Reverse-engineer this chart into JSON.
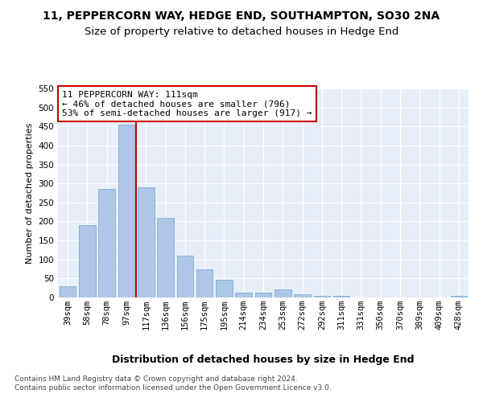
{
  "title1": "11, PEPPERCORN WAY, HEDGE END, SOUTHAMPTON, SO30 2NA",
  "title2": "Size of property relative to detached houses in Hedge End",
  "xlabel": "Distribution of detached houses by size in Hedge End",
  "ylabel": "Number of detached properties",
  "categories": [
    "39sqm",
    "58sqm",
    "78sqm",
    "97sqm",
    "117sqm",
    "136sqm",
    "156sqm",
    "175sqm",
    "195sqm",
    "214sqm",
    "234sqm",
    "253sqm",
    "272sqm",
    "292sqm",
    "311sqm",
    "331sqm",
    "350sqm",
    "370sqm",
    "389sqm",
    "409sqm",
    "428sqm"
  ],
  "values": [
    30,
    190,
    285,
    455,
    290,
    210,
    110,
    73,
    46,
    13,
    12,
    21,
    8,
    4,
    5,
    0,
    0,
    0,
    0,
    0,
    5
  ],
  "bar_color": "#aec6e8",
  "bar_edge_color": "#7bafd4",
  "vline_color": "#cc0000",
  "annotation_text": "11 PEPPERCORN WAY: 111sqm\n← 46% of detached houses are smaller (796)\n53% of semi-detached houses are larger (917) →",
  "annotation_box_color": "white",
  "annotation_box_edge": "#cc0000",
  "ylim": [
    0,
    550
  ],
  "yticks": [
    0,
    50,
    100,
    150,
    200,
    250,
    300,
    350,
    400,
    450,
    500,
    550
  ],
  "bg_color": "#e8eef8",
  "grid_color": "white",
  "footer": "Contains HM Land Registry data © Crown copyright and database right 2024.\nContains public sector information licensed under the Open Government Licence v3.0.",
  "title1_fontsize": 10,
  "title2_fontsize": 9.5,
  "xlabel_fontsize": 9,
  "ylabel_fontsize": 8,
  "tick_fontsize": 7.5,
  "annotation_fontsize": 8,
  "footer_fontsize": 6.5
}
